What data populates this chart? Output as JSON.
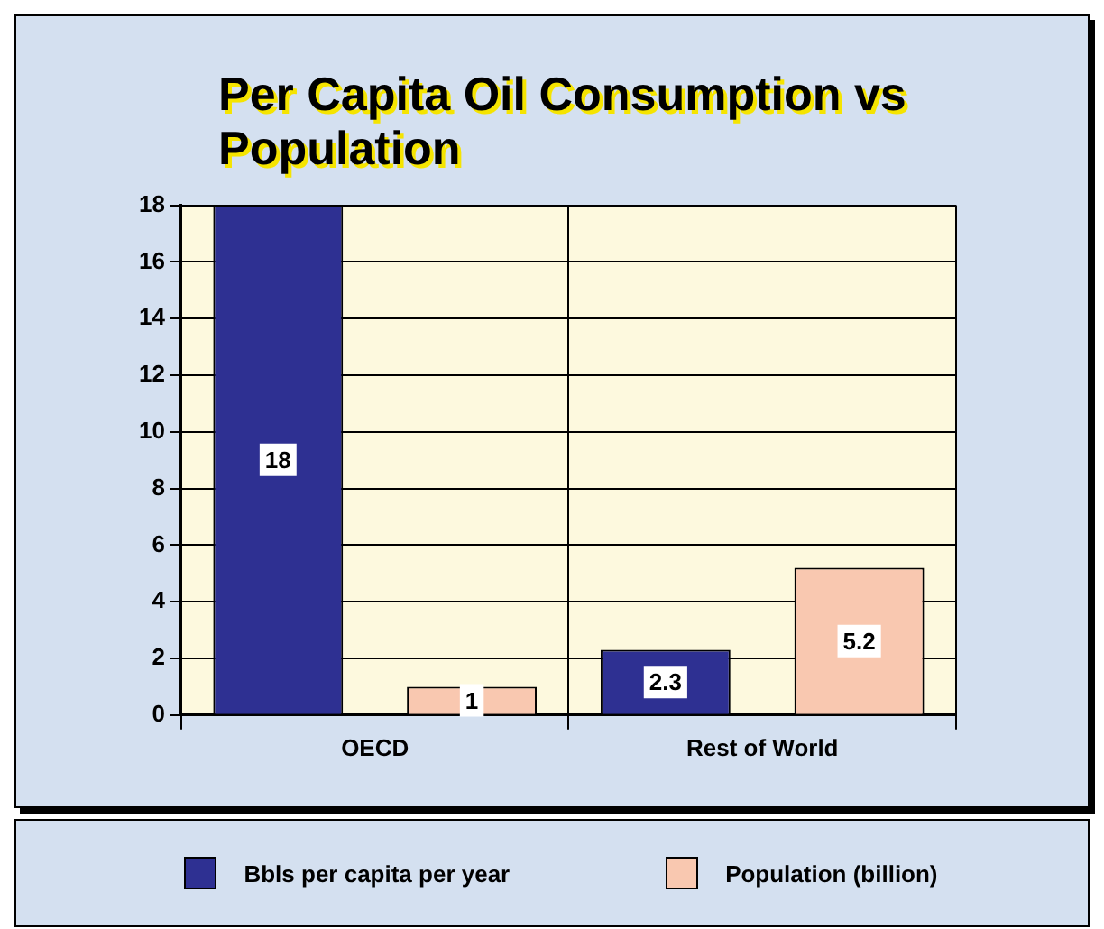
{
  "chart_data": {
    "type": "bar",
    "title": "Per Capita Oil Consumption vs Population",
    "categories": [
      "OECD",
      "Rest of World"
    ],
    "series": [
      {
        "name": "Bbls per capita per year",
        "color": "#2e3092",
        "values": [
          18,
          2.3
        ]
      },
      {
        "name": "Population (billion)",
        "color": "#f9c8b0",
        "values": [
          1,
          5.2
        ]
      }
    ],
    "ylim": [
      0,
      18
    ],
    "yticks": [
      0,
      2,
      4,
      6,
      8,
      10,
      12,
      14,
      16,
      18
    ],
    "grid": true,
    "legend": "bottom",
    "data_labels": true
  }
}
